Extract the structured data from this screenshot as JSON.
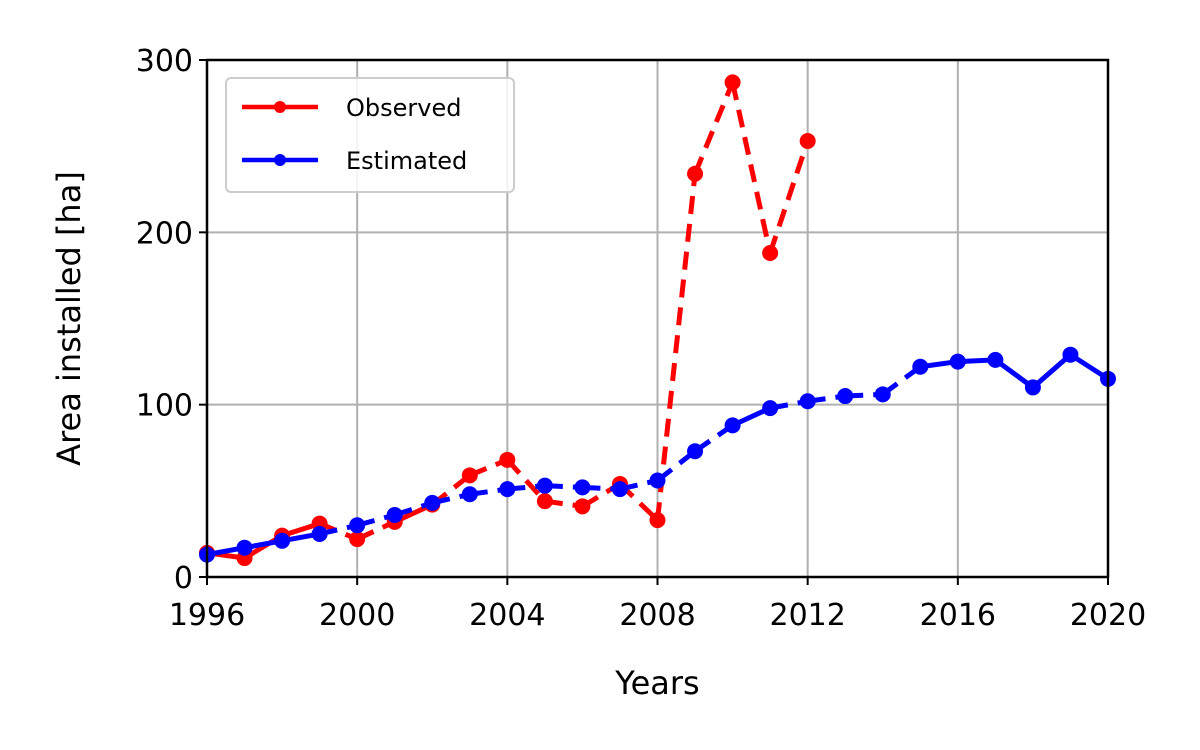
{
  "chart_data": {
    "type": "line",
    "xlabel": "Years",
    "ylabel": "Area installed [ha]",
    "xlim": [
      1996,
      2020
    ],
    "ylim": [
      0,
      300
    ],
    "xticks": [
      1996,
      2000,
      2004,
      2008,
      2012,
      2016,
      2020
    ],
    "yticks": [
      0,
      100,
      200,
      300
    ],
    "grid": true,
    "legend_position": "top-left",
    "series": [
      {
        "name": "Observed",
        "color": "#ff0000",
        "x": [
          1996,
          1997,
          1998,
          1999,
          2000,
          2001,
          2002,
          2003,
          2004,
          2005,
          2006,
          2007,
          2008,
          2009,
          2010,
          2011,
          2012
        ],
        "values": [
          14,
          11,
          24,
          31,
          22,
          32,
          42,
          59,
          68,
          44,
          41,
          54,
          33,
          234,
          287,
          188,
          253
        ],
        "solid_segments": [
          0,
          1,
          2,
          5
        ]
      },
      {
        "name": "Estimated",
        "color": "#0000ff",
        "x": [
          1996,
          1997,
          1998,
          1999,
          2000,
          2001,
          2002,
          2003,
          2004,
          2005,
          2006,
          2007,
          2008,
          2009,
          2010,
          2011,
          2012,
          2013,
          2014,
          2015,
          2016,
          2017,
          2018,
          2019,
          2020
        ],
        "values": [
          13,
          17,
          21,
          25,
          30,
          36,
          43,
          48,
          51,
          53,
          52,
          51,
          56,
          73,
          88,
          98,
          102,
          105,
          106,
          122,
          125,
          126,
          110,
          129,
          115
        ],
        "solid_segments": [
          0,
          1,
          2,
          14,
          19,
          20,
          21,
          22,
          23
        ]
      }
    ]
  }
}
